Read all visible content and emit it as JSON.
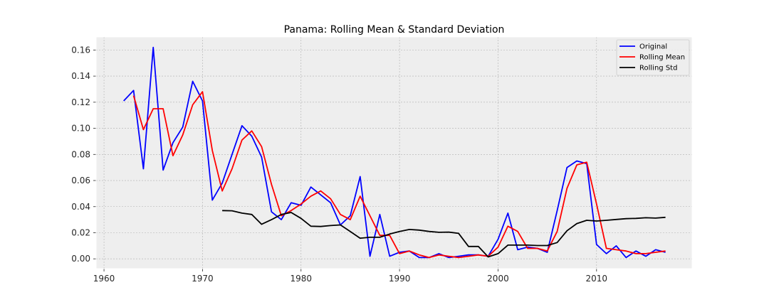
{
  "chart_data": {
    "type": "line",
    "title": "Panama: Rolling Mean & Standard Deviation",
    "xlabel": "",
    "ylabel": "",
    "xlim": [
      1959.2,
      2019.7
    ],
    "ylim": [
      -0.0075,
      0.17
    ],
    "x_ticks": [
      1960,
      1970,
      1980,
      1990,
      2000,
      2010
    ],
    "y_ticks": [
      0.0,
      0.02,
      0.04,
      0.06,
      0.08,
      0.1,
      0.12,
      0.14,
      0.16
    ],
    "grid": true,
    "legend_position": "top-right",
    "series": [
      {
        "name": "Original",
        "color": "#0000ff",
        "x": [
          1962,
          1963,
          1964,
          1965,
          1966,
          1967,
          1968,
          1969,
          1970,
          1971,
          1972,
          1973,
          1974,
          1975,
          1976,
          1977,
          1978,
          1979,
          1980,
          1981,
          1982,
          1983,
          1984,
          1985,
          1986,
          1987,
          1988,
          1989,
          1990,
          1991,
          1992,
          1993,
          1994,
          1995,
          1996,
          1997,
          1998,
          1999,
          2000,
          2001,
          2002,
          2003,
          2004,
          2005,
          2006,
          2007,
          2008,
          2009,
          2010,
          2011,
          2012,
          2013,
          2014,
          2015,
          2016,
          2017
        ],
        "y": [
          0.121,
          0.129,
          0.069,
          0.162,
          0.068,
          0.089,
          0.101,
          0.136,
          0.121,
          0.045,
          0.058,
          0.08,
          0.102,
          0.094,
          0.078,
          0.036,
          0.03,
          0.043,
          0.041,
          0.055,
          0.049,
          0.043,
          0.026,
          0.033,
          0.063,
          0.002,
          0.034,
          0.002,
          0.005,
          0.006,
          0.001,
          0.001,
          0.004,
          0.001,
          0.002,
          0.003,
          0.003,
          0.002,
          0.015,
          0.035,
          0.007,
          0.009,
          0.008,
          0.005,
          0.037,
          0.07,
          0.075,
          0.073,
          0.011,
          0.004,
          0.01,
          0.001,
          0.006,
          0.002,
          0.007,
          0.005
        ]
      },
      {
        "name": "Rolling Mean",
        "color": "#ff0000",
        "x": [
          1963,
          1964,
          1965,
          1966,
          1967,
          1968,
          1969,
          1970,
          1971,
          1972,
          1973,
          1974,
          1975,
          1976,
          1977,
          1978,
          1979,
          1980,
          1981,
          1982,
          1983,
          1984,
          1985,
          1986,
          1987,
          1988,
          1989,
          1990,
          1991,
          1992,
          1993,
          1994,
          1995,
          1996,
          1997,
          1998,
          1999,
          2000,
          2001,
          2002,
          2003,
          2004,
          2005,
          2006,
          2007,
          2008,
          2009,
          2010,
          2011,
          2012,
          2013,
          2014,
          2015,
          2016,
          2017
        ],
        "y": [
          0.125,
          0.099,
          0.115,
          0.115,
          0.079,
          0.095,
          0.118,
          0.128,
          0.083,
          0.052,
          0.069,
          0.091,
          0.098,
          0.086,
          0.057,
          0.033,
          0.037,
          0.042,
          0.048,
          0.052,
          0.046,
          0.034,
          0.03,
          0.048,
          0.033,
          0.018,
          0.018,
          0.004,
          0.006,
          0.003,
          0.001,
          0.003,
          0.002,
          0.001,
          0.002,
          0.003,
          0.002,
          0.009,
          0.025,
          0.021,
          0.008,
          0.008,
          0.006,
          0.021,
          0.054,
          0.072,
          0.074,
          0.042,
          0.008,
          0.007,
          0.006,
          0.004,
          0.004,
          0.005,
          0.006
        ]
      },
      {
        "name": "Rolling Std",
        "color": "#000000",
        "x": [
          1972,
          1973,
          1974,
          1975,
          1976,
          1977,
          1978,
          1979,
          1980,
          1981,
          1982,
          1983,
          1984,
          1985,
          1986,
          1987,
          1988,
          1989,
          1990,
          1991,
          1992,
          1993,
          1994,
          1995,
          1996,
          1997,
          1998,
          1999,
          2000,
          2001,
          2002,
          2003,
          2004,
          2005,
          2006,
          2007,
          2008,
          2009,
          2010,
          2011,
          2012,
          2013,
          2014,
          2015,
          2016,
          2017
        ],
        "y": [
          0.037,
          0.0368,
          0.035,
          0.034,
          0.0265,
          0.03,
          0.034,
          0.0355,
          0.031,
          0.025,
          0.0248,
          0.0255,
          0.026,
          0.021,
          0.0158,
          0.0165,
          0.0165,
          0.019,
          0.021,
          0.0225,
          0.022,
          0.021,
          0.0203,
          0.0205,
          0.0195,
          0.0095,
          0.0095,
          0.0015,
          0.004,
          0.0105,
          0.0105,
          0.0105,
          0.0102,
          0.0102,
          0.0125,
          0.0215,
          0.027,
          0.0295,
          0.029,
          0.0295,
          0.0302,
          0.0308,
          0.031,
          0.0315,
          0.0312,
          0.0318
        ]
      }
    ]
  }
}
